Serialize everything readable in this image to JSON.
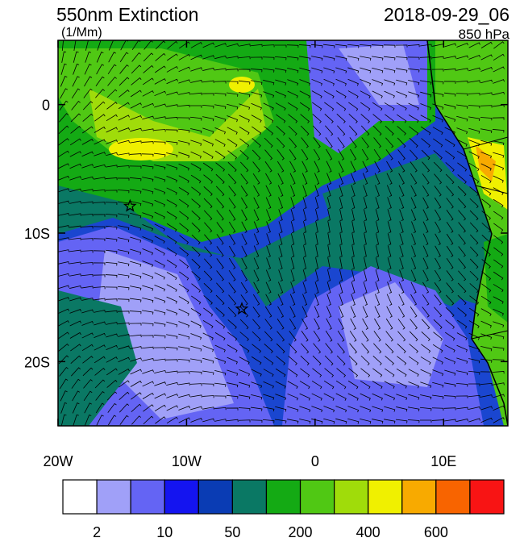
{
  "title": "550nm Extinction",
  "units": "(1/Mm)",
  "date": "2018-09-29_06",
  "level": "850 hPa",
  "map": {
    "lon_range": [
      -20,
      15
    ],
    "lat_range": [
      -25,
      5
    ],
    "lon_ticks": [
      {
        "value": -20,
        "label": "20W"
      },
      {
        "value": -10,
        "label": "10W"
      },
      0,
      {
        "value": 10,
        "label": "10E"
      }
    ],
    "lat_ticks": [
      0,
      {
        "value": -10,
        "label": "10S"
      },
      {
        "value": -20,
        "label": "20S"
      }
    ],
    "markers": [
      {
        "lon": -14.4,
        "lat": -7.9
      },
      {
        "lon": -5.7,
        "lat": -15.9
      }
    ]
  },
  "colorbar": {
    "colors": [
      "#ffffff",
      "#a0a0f8",
      "#6464f4",
      "#1414f0",
      "#0a3cb4",
      "#0a7864",
      "#14aa14",
      "#50c814",
      "#a0dc0a",
      "#f0f000",
      "#f8aa00",
      "#f86400",
      "#f81414"
    ],
    "labels": [
      "2",
      "10",
      "50",
      "200",
      "400",
      "600"
    ]
  }
}
